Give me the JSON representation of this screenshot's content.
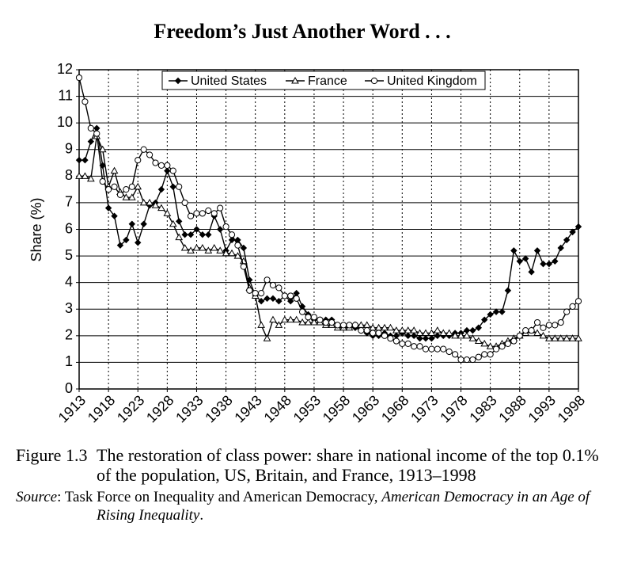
{
  "chart_data": {
    "type": "line",
    "title": "Freedom’s Just Another Word . . .",
    "ylabel": "Share (%)",
    "x": [
      1913,
      1914,
      1915,
      1916,
      1917,
      1918,
      1919,
      1920,
      1921,
      1922,
      1923,
      1924,
      1925,
      1926,
      1927,
      1928,
      1929,
      1930,
      1931,
      1932,
      1933,
      1934,
      1935,
      1936,
      1937,
      1938,
      1939,
      1940,
      1941,
      1942,
      1943,
      1944,
      1945,
      1946,
      1947,
      1948,
      1949,
      1950,
      1951,
      1952,
      1953,
      1954,
      1955,
      1956,
      1957,
      1958,
      1959,
      1960,
      1961,
      1962,
      1963,
      1964,
      1965,
      1966,
      1967,
      1968,
      1969,
      1970,
      1971,
      1972,
      1973,
      1974,
      1975,
      1976,
      1977,
      1978,
      1979,
      1980,
      1981,
      1982,
      1983,
      1984,
      1985,
      1986,
      1987,
      1988,
      1989,
      1990,
      1991,
      1992,
      1993,
      1994,
      1995,
      1996,
      1997,
      1998
    ],
    "xlim": [
      1913,
      1998
    ],
    "xticks": [
      1913,
      1918,
      1923,
      1928,
      1933,
      1938,
      1943,
      1948,
      1953,
      1958,
      1963,
      1968,
      1973,
      1978,
      1983,
      1988,
      1993,
      1998
    ],
    "ylim": [
      0,
      12
    ],
    "yticks": [
      0,
      1,
      2,
      3,
      4,
      5,
      6,
      7,
      8,
      9,
      10,
      11,
      12
    ],
    "grid": true,
    "legend": "top-right",
    "series": [
      {
        "name": "United States",
        "color": "#000000",
        "marker": "diamond",
        "values": [
          8.6,
          8.6,
          9.3,
          9.8,
          8.4,
          6.8,
          6.5,
          5.4,
          5.6,
          6.2,
          5.5,
          6.2,
          6.9,
          7.0,
          7.5,
          8.2,
          7.6,
          6.3,
          5.8,
          5.8,
          6.0,
          5.8,
          5.8,
          6.5,
          6.0,
          5.2,
          5.6,
          5.6,
          5.3,
          4.1,
          3.5,
          3.3,
          3.4,
          3.4,
          3.3,
          3.5,
          3.3,
          3.6,
          3.1,
          2.8,
          2.6,
          2.6,
          2.6,
          2.6,
          2.4,
          2.3,
          2.4,
          2.3,
          2.2,
          2.1,
          2.0,
          2.0,
          2.1,
          2.0,
          2.0,
          2.1,
          2.0,
          2.0,
          1.9,
          1.9,
          1.9,
          2.0,
          2.0,
          2.0,
          2.1,
          2.1,
          2.2,
          2.2,
          2.3,
          2.6,
          2.8,
          2.9,
          2.9,
          3.7,
          5.2,
          4.8,
          4.9,
          4.4,
          5.2,
          4.7,
          4.7,
          4.8,
          5.3,
          5.6,
          5.9,
          6.1
        ]
      },
      {
        "name": "France",
        "color": "#000000",
        "marker": "triangle",
        "values": [
          8.0,
          8.0,
          7.9,
          9.5,
          9.0,
          7.6,
          8.2,
          7.4,
          7.2,
          7.2,
          7.6,
          7.0,
          7.0,
          6.9,
          6.8,
          6.6,
          6.2,
          5.7,
          5.3,
          5.2,
          5.3,
          5.3,
          5.2,
          5.3,
          5.2,
          5.1,
          5.1,
          5.0,
          4.8,
          3.8,
          3.5,
          2.4,
          1.9,
          2.6,
          2.4,
          2.6,
          2.6,
          2.6,
          2.5,
          2.5,
          2.5,
          2.5,
          2.4,
          2.4,
          2.3,
          2.3,
          2.3,
          2.4,
          2.4,
          2.4,
          2.3,
          2.3,
          2.3,
          2.3,
          2.2,
          2.2,
          2.2,
          2.2,
          2.1,
          2.1,
          2.1,
          2.2,
          2.1,
          2.1,
          2.0,
          2.0,
          2.0,
          1.9,
          1.8,
          1.7,
          1.6,
          1.6,
          1.7,
          1.8,
          1.9,
          2.0,
          2.1,
          2.2,
          2.1,
          2.0,
          1.9,
          1.9,
          1.9,
          1.9,
          1.9,
          1.9
        ]
      },
      {
        "name": "United Kingdom",
        "color": "#000000",
        "marker": "circle",
        "values": [
          11.7,
          10.8,
          9.8,
          9.6,
          7.8,
          7.5,
          7.6,
          7.3,
          7.5,
          7.6,
          8.6,
          9.0,
          8.8,
          8.5,
          8.4,
          8.4,
          8.2,
          7.6,
          7.0,
          6.5,
          6.6,
          6.6,
          6.7,
          6.6,
          6.8,
          6.1,
          5.8,
          5.4,
          4.6,
          3.7,
          3.6,
          3.6,
          4.1,
          3.9,
          3.8,
          3.5,
          3.5,
          3.4,
          2.9,
          2.7,
          2.7,
          2.6,
          2.5,
          2.5,
          2.4,
          2.4,
          2.4,
          2.4,
          2.2,
          2.2,
          2.1,
          2.1,
          2.0,
          1.9,
          1.8,
          1.7,
          1.7,
          1.6,
          1.6,
          1.5,
          1.5,
          1.5,
          1.5,
          1.4,
          1.3,
          1.1,
          1.1,
          1.1,
          1.2,
          1.3,
          1.3,
          1.5,
          1.6,
          1.7,
          1.8,
          2.0,
          2.2,
          2.2,
          2.5,
          2.3,
          2.4,
          2.4,
          2.5,
          2.9,
          3.1,
          3.3
        ]
      }
    ]
  },
  "caption": {
    "label": "Figure 1.3",
    "text": "The restoration of class power: share in national income of the top 0.1% of the population, US, Britain, and France, 1913–1998"
  },
  "source": {
    "label": "Source",
    "text": ": Task Force on Inequality and American Democracy, ",
    "title": "American Democracy in an Age of Rising Inequality",
    "end": "."
  }
}
